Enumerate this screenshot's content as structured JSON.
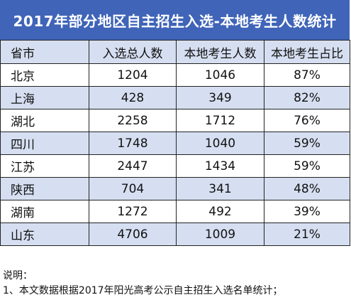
{
  "title": "2017年部分地区自主招生入选-本地考生人数统计",
  "table": {
    "headers": [
      "省市",
      "入选总人数",
      "本地考生人数",
      "本地考生占比"
    ],
    "rows": [
      {
        "province": "北京",
        "total": "1204",
        "local": "1046",
        "ratio": "87%"
      },
      {
        "province": "上海",
        "total": "428",
        "local": "349",
        "ratio": "82%"
      },
      {
        "province": "湖北",
        "total": "2258",
        "local": "1712",
        "ratio": "76%"
      },
      {
        "province": "四川",
        "total": "1748",
        "local": "1040",
        "ratio": "59%"
      },
      {
        "province": "江苏",
        "total": "2447",
        "local": "1434",
        "ratio": "59%"
      },
      {
        "province": "陕西",
        "total": "704",
        "local": "341",
        "ratio": "48%"
      },
      {
        "province": "湖南",
        "total": "1272",
        "local": "492",
        "ratio": "39%"
      },
      {
        "province": "山东",
        "total": "4706",
        "local": "1009",
        "ratio": "21%"
      }
    ]
  },
  "notes": {
    "heading": "说明：",
    "line1": "1、本文数据根据2017年阳光高考公示自主招生入选名单统计；"
  },
  "colors": {
    "title_background": "#3f64b8",
    "band_background": "#d6dff1"
  }
}
